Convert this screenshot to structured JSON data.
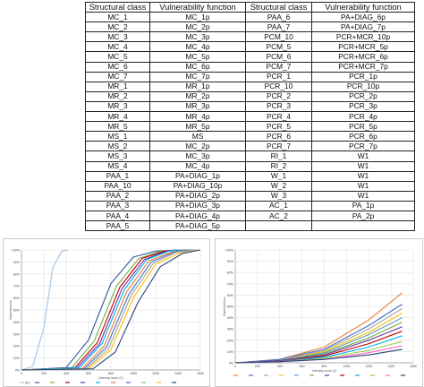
{
  "table": {
    "headers": [
      "Structural class",
      "Vulnerability function",
      "Structural class",
      "Vulnerability function"
    ],
    "rows": [
      [
        "MC_1",
        "MC_1p",
        "PAA_6",
        "PA+DIAG_6p"
      ],
      [
        "MC_2",
        "MC_2p",
        "PAA_7",
        "PA+DIAG_7p"
      ],
      [
        "MC_3",
        "MC_3p",
        "PCM_10",
        "PCR+MCR_10p"
      ],
      [
        "MC_4",
        "MC_4p",
        "PCM_5",
        "PCR+MCR_5p"
      ],
      [
        "MC_5",
        "MC_5p",
        "PCM_6",
        "PCR+MCR_6p"
      ],
      [
        "MC_6",
        "MC_6p",
        "PCM_7",
        "PCR+MCR_7p"
      ],
      [
        "MC_7",
        "MC_7p",
        "PCR_1",
        "PCR_1p"
      ],
      [
        "MR_1",
        "MR_1p",
        "PCR_10",
        "PCR_10p"
      ],
      [
        "MR_2",
        "MR_2p",
        "PCR_2",
        "PCR_2p"
      ],
      [
        "MR_3",
        "MR_3p",
        "PCR_3",
        "PCR_3p"
      ],
      [
        "MR_4",
        "MR_4p",
        "PCR_4",
        "PCR_4p"
      ],
      [
        "MR_5",
        "MR_5p",
        "PCR_5",
        "PCR_5p"
      ],
      [
        "MS_1",
        "MS",
        "PCR_6",
        "PCR_6p"
      ],
      [
        "MS_2",
        "MC_2p",
        "PCR_7",
        "PCR_7p"
      ],
      [
        "MS_3",
        "MC_3p",
        "RI_1",
        "W1"
      ],
      [
        "MS_4",
        "MC_4p",
        "RI_2",
        "W1"
      ],
      [
        "PAA_1",
        "PA+DIAG_1p",
        "W_1",
        "W1"
      ],
      [
        "PAA_10",
        "PA+DIAG_10p",
        "W_2",
        "W1"
      ],
      [
        "PAA_2",
        "PA+DIAG_2p",
        "W_3",
        "W1"
      ],
      [
        "PAA_3",
        "PA+DIAG_3p",
        "AC_1",
        "PA_1p"
      ],
      [
        "PAA_4",
        "PA+DIAG_4p",
        "AC_2",
        "PA_2p"
      ],
      [
        "PAA_5",
        "PA+DIAG_5p",
        "",
        ""
      ]
    ]
  },
  "chart_data": [
    {
      "type": "line",
      "xlabel": "Intensity score (1)",
      "ylabel": "Expected loss",
      "xlim": [
        0,
        1600
      ],
      "ylim": [
        0,
        100
      ],
      "x_ticks": [
        "0",
        "200",
        "400",
        "600",
        "800",
        "1000",
        "1200",
        "1400",
        "1600"
      ],
      "y_ticks": [
        "0%",
        "10%",
        "20%",
        "30%",
        "40%",
        "50%",
        "60%",
        "70%",
        "80%",
        "90%",
        "100%"
      ],
      "grid": true,
      "legend": "bottom",
      "series": [
        {
          "name": "W1",
          "color": "#9dc3e6",
          "x": [
            0,
            100,
            200,
            280,
            360,
            420
          ],
          "y": [
            0,
            3,
            35,
            85,
            99,
            100
          ]
        },
        {
          "name": "",
          "color": "#2f5597",
          "x": [
            0,
            400,
            600,
            800,
            1000,
            1200,
            1400
          ],
          "y": [
            0,
            2,
            25,
            72,
            94,
            99,
            100
          ]
        },
        {
          "name": "",
          "color": "#70ad47",
          "x": [
            0,
            450,
            650,
            850,
            1050,
            1250,
            1450
          ],
          "y": [
            0,
            2,
            24,
            70,
            93,
            99,
            100
          ]
        },
        {
          "name": "",
          "color": "#c00000",
          "x": [
            0,
            480,
            680,
            880,
            1080,
            1280,
            1480
          ],
          "y": [
            0,
            2,
            23,
            69,
            93,
            99,
            100
          ]
        },
        {
          "name": "",
          "color": "#7030a0",
          "x": [
            0,
            500,
            700,
            900,
            1100,
            1300,
            1500
          ],
          "y": [
            0,
            2,
            22,
            68,
            92,
            99,
            100
          ]
        },
        {
          "name": "",
          "color": "#00b0f0",
          "x": [
            0,
            520,
            720,
            920,
            1120,
            1320,
            1520
          ],
          "y": [
            0,
            2,
            22,
            67,
            92,
            99,
            100
          ]
        },
        {
          "name": "",
          "color": "#ed7d31",
          "x": [
            0,
            540,
            740,
            940,
            1140,
            1340,
            1540
          ],
          "y": [
            0,
            1,
            20,
            65,
            91,
            98,
            100
          ]
        },
        {
          "name": "",
          "color": "#4472c4",
          "x": [
            0,
            560,
            760,
            960,
            1160,
            1360,
            1560
          ],
          "y": [
            0,
            1,
            19,
            63,
            90,
            98,
            100
          ]
        },
        {
          "name": "",
          "color": "#a5a5a5",
          "x": [
            0,
            580,
            780,
            980,
            1180,
            1380,
            1580
          ],
          "y": [
            0,
            1,
            18,
            62,
            89,
            98,
            100
          ]
        },
        {
          "name": "",
          "color": "#ffc000",
          "x": [
            0,
            600,
            800,
            1000,
            1200,
            1400,
            1600
          ],
          "y": [
            0,
            1,
            17,
            60,
            88,
            97,
            100
          ]
        },
        {
          "name": "",
          "color": "#264478",
          "x": [
            0,
            640,
            840,
            1040,
            1240,
            1440,
            1600
          ],
          "y": [
            0,
            1,
            15,
            56,
            86,
            97,
            100
          ]
        }
      ]
    },
    {
      "type": "line",
      "xlabel": "Intensity score (1)",
      "ylabel": "Expected loss",
      "xlim": [
        0,
        1600
      ],
      "ylim": [
        0,
        100
      ],
      "x_ticks": [
        "0",
        "200",
        "400",
        "600",
        "800",
        "1000",
        "1200",
        "1400",
        "1600"
      ],
      "y_ticks": [
        "0%",
        "10%",
        "20%",
        "30%",
        "40%",
        "50%",
        "60%",
        "70%",
        "80%",
        "90%",
        "100%"
      ],
      "grid": true,
      "legend": "bottom",
      "series": [
        {
          "name": "",
          "color": "#ed7d31",
          "x": [
            0,
            400,
            800,
            1200,
            1500
          ],
          "y": [
            0,
            3,
            14,
            38,
            62
          ]
        },
        {
          "name": "",
          "color": "#4472c4",
          "x": [
            0,
            400,
            800,
            1200,
            1500
          ],
          "y": [
            0,
            3,
            12,
            33,
            52
          ]
        },
        {
          "name": "",
          "color": "#a5a5a5",
          "x": [
            0,
            400,
            800,
            1200,
            1500
          ],
          "y": [
            0,
            2,
            11,
            30,
            48
          ]
        },
        {
          "name": "",
          "color": "#ffc000",
          "x": [
            0,
            400,
            800,
            1200,
            1500
          ],
          "y": [
            0,
            2,
            10,
            27,
            44
          ]
        },
        {
          "name": "",
          "color": "#5b9bd5",
          "x": [
            0,
            400,
            800,
            1200,
            1500
          ],
          "y": [
            0,
            2,
            9,
            25,
            40
          ]
        },
        {
          "name": "",
          "color": "#70ad47",
          "x": [
            0,
            400,
            800,
            1200,
            1500
          ],
          "y": [
            0,
            2,
            8,
            22,
            36
          ]
        },
        {
          "name": "",
          "color": "#7030a0",
          "x": [
            0,
            400,
            800,
            1200,
            1500
          ],
          "y": [
            0,
            2,
            7,
            20,
            32
          ]
        },
        {
          "name": "",
          "color": "#c00000",
          "x": [
            0,
            400,
            800,
            1200,
            1500
          ],
          "y": [
            0,
            1,
            6,
            17,
            28
          ]
        },
        {
          "name": "",
          "color": "#00b0f0",
          "x": [
            0,
            400,
            800,
            1200,
            1500
          ],
          "y": [
            0,
            1,
            5,
            14,
            24
          ]
        },
        {
          "name": "",
          "color": "#92d050",
          "x": [
            0,
            400,
            800,
            1200,
            1500
          ],
          "y": [
            0,
            1,
            4,
            11,
            19
          ]
        },
        {
          "name": "",
          "color": "#ff66cc",
          "x": [
            0,
            400,
            800,
            1200,
            1500
          ],
          "y": [
            0,
            1,
            3,
            9,
            15
          ]
        },
        {
          "name": "",
          "color": "#264478",
          "x": [
            0,
            400,
            800,
            1200,
            1500
          ],
          "y": [
            0,
            1,
            3,
            7,
            12
          ]
        }
      ]
    }
  ]
}
